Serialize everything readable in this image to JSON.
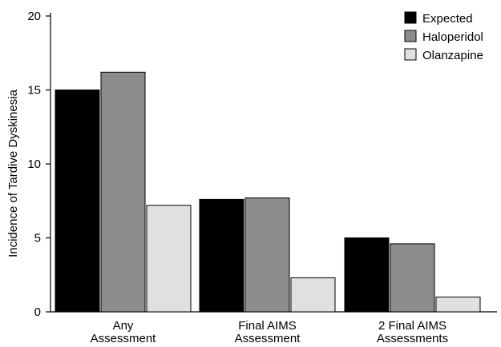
{
  "chart_data": {
    "type": "bar",
    "categories": [
      [
        "Any",
        "Assessment"
      ],
      [
        "Final AIMS",
        "Assessment"
      ],
      [
        "2 Final AIMS",
        "Assessments"
      ]
    ],
    "series": [
      {
        "name": "Expected",
        "values": [
          15.0,
          7.6,
          5.0
        ],
        "color": "#000000"
      },
      {
        "name": "Haloperidol",
        "values": [
          16.2,
          7.7,
          4.6
        ],
        "color": "#8c8c8c"
      },
      {
        "name": "Olanzapine",
        "values": [
          7.2,
          2.3,
          1.0
        ],
        "color": "#e0e0e0"
      }
    ],
    "ylabel": "Incidence of Tardive Dyskinesia",
    "xlabel": "",
    "title": "",
    "ylim": [
      0,
      20
    ],
    "yticks": [
      0,
      5,
      10,
      15,
      20
    ],
    "grid": false,
    "legend_position": "top-right"
  }
}
